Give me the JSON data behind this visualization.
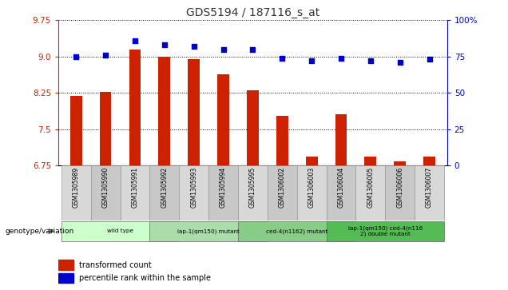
{
  "title": "GDS5194 / 187116_s_at",
  "samples": [
    "GSM1305989",
    "GSM1305990",
    "GSM1305991",
    "GSM1305992",
    "GSM1305993",
    "GSM1305994",
    "GSM1305995",
    "GSM1306002",
    "GSM1306003",
    "GSM1306004",
    "GSM1306005",
    "GSM1306006",
    "GSM1306007"
  ],
  "transformed_count": [
    8.18,
    8.27,
    9.15,
    9.0,
    8.95,
    8.63,
    8.3,
    7.78,
    6.93,
    7.8,
    6.93,
    6.83,
    6.93
  ],
  "percentile_rank": [
    75,
    76,
    86,
    83,
    82,
    80,
    80,
    74,
    72,
    74,
    72,
    71,
    73
  ],
  "ymin": 6.75,
  "ymax": 9.75,
  "rmin": 0,
  "rmax": 100,
  "yticks_left": [
    6.75,
    7.5,
    8.25,
    9.0,
    9.75
  ],
  "yticks_right": [
    0,
    25,
    50,
    75,
    100
  ],
  "ytick_labels_right": [
    "0",
    "25",
    "50",
    "75",
    "100%"
  ],
  "bar_color": "#cc2200",
  "dot_color": "#0000cc",
  "tick_color_left": "#cc2200",
  "tick_color_right": "#0000cc",
  "group_info": [
    [
      0,
      3,
      "#ccffcc",
      "wild type"
    ],
    [
      3,
      6,
      "#aaddaa",
      "iap-1(qm150) mutant"
    ],
    [
      6,
      9,
      "#88cc88",
      "ced-4(n1162) mutant"
    ],
    [
      9,
      12,
      "#55bb55",
      "iap-1(qm150) ced-4(n116\n2) double mutant"
    ]
  ],
  "legend_items": [
    "transformed count",
    "percentile rank within the sample"
  ],
  "legend_colors": [
    "#cc2200",
    "#0000cc"
  ]
}
